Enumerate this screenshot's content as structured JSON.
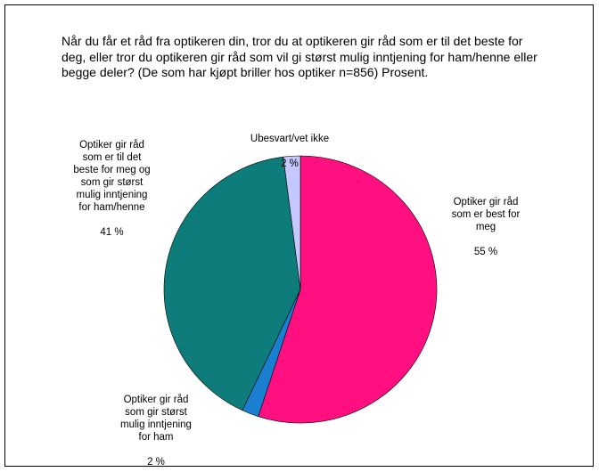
{
  "chart_data": {
    "type": "pie",
    "title": "Når du får et råd fra optikeren din, tror du at optikeren gir råd som er til det beste for deg, eller tror du optikeren gir råd som vil gi størst mulig inntjening for ham/henne eller begge deler? (De som har kjøpt briller hos optiker n=856) Prosent.",
    "slices": [
      {
        "label": "Optiker gir råd\nsom er best for\nmeg",
        "value_label": "55 %",
        "value": 55,
        "color": "#FF0F80"
      },
      {
        "label": "Optiker gir råd\nsom gir størst\nmulig inntjening\nfor ham",
        "value_label": "2 %",
        "value": 2,
        "color": "#1A7FD0"
      },
      {
        "label": "Optiker gir råd\nsom er til det\nbeste for meg og\nsom gir størst\nmulig inntjening\nfor ham/henne",
        "value_label": "41 %",
        "value": 41,
        "color": "#0E7C7B"
      },
      {
        "label": "Ubesvart/vet ikke",
        "value_label": "2 %",
        "value": 2,
        "color": "#C4C8FF"
      }
    ]
  }
}
